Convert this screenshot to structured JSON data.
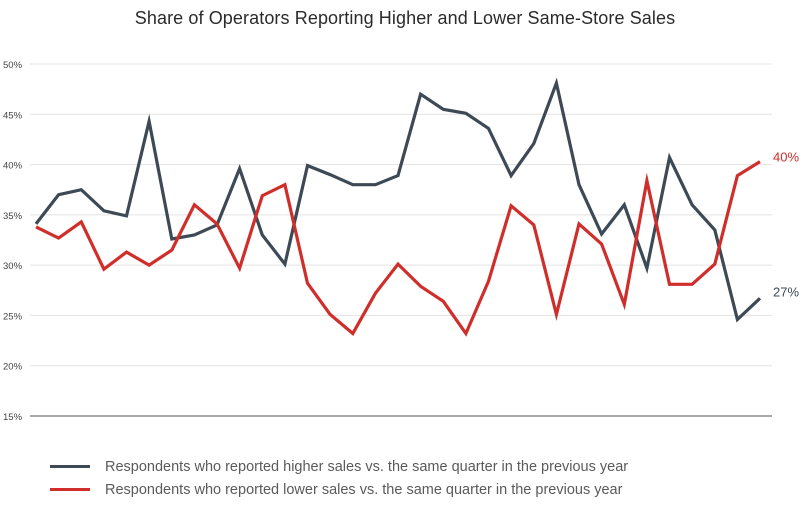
{
  "chart_data": {
    "type": "line",
    "title": "Share of Operators Reporting Higher and Lower Same-Store Sales",
    "xlabel": "",
    "ylabel": "",
    "ylim": [
      15,
      50
    ],
    "yticks": [
      15,
      20,
      25,
      30,
      35,
      40,
      45,
      50
    ],
    "ytick_labels": [
      "15%",
      "20%",
      "25%",
      "30%",
      "35%",
      "40%",
      "45%",
      "50%"
    ],
    "grid": true,
    "legend_position": "bottom-left",
    "series": [
      {
        "name": "Respondents who reported higher sales vs. the same quarter in the previous year",
        "color": "#3d4a55",
        "end_label": "27%",
        "values": [
          34.1,
          37.0,
          37.5,
          35.4,
          34.9,
          44.3,
          32.6,
          33.0,
          34.0,
          39.6,
          33.0,
          30.1,
          39.9,
          39.0,
          38.0,
          38.0,
          38.9,
          47.0,
          45.5,
          45.1,
          43.6,
          38.9,
          42.1,
          48.1,
          38.0,
          33.1,
          36.0,
          29.7,
          40.7,
          36.0,
          33.5,
          24.6,
          26.7
        ]
      },
      {
        "name": "Respondents who reported lower sales vs. the same quarter in the previous year",
        "color": "#cf2e2a",
        "end_label": "40%",
        "values": [
          33.8,
          32.7,
          34.3,
          29.6,
          31.3,
          30.0,
          31.5,
          36.0,
          34.1,
          29.7,
          36.9,
          38.0,
          28.2,
          25.1,
          23.2,
          27.2,
          30.1,
          27.9,
          26.4,
          23.2,
          28.4,
          35.9,
          34.0,
          25.1,
          34.1,
          32.1,
          26.1,
          38.4,
          28.1,
          28.1,
          30.1,
          38.9,
          40.3
        ]
      }
    ]
  }
}
